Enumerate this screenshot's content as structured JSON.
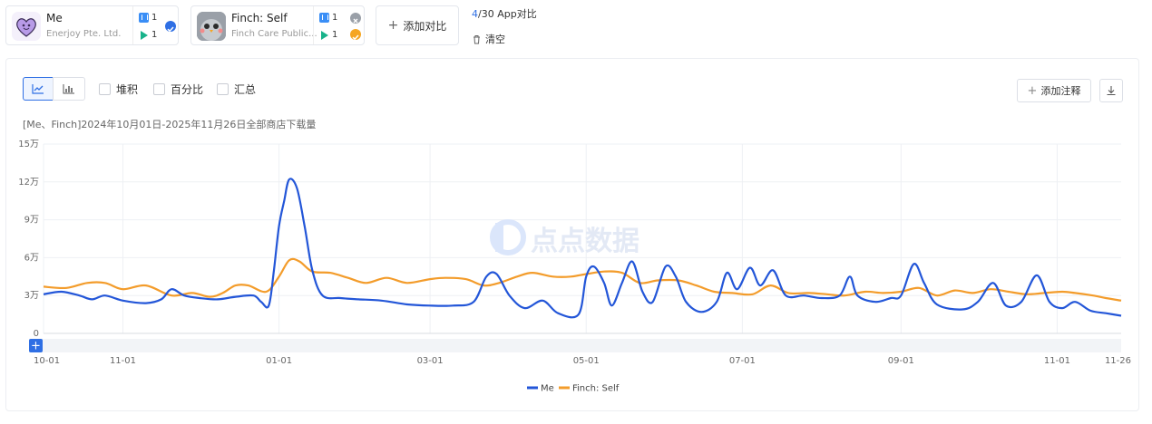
{
  "apps": [
    {
      "name": "Me",
      "publisher": "Enerjoy Pte. Ltd.",
      "ios_count": "1",
      "android_count": "1",
      "badge_color": "#2f6fe4"
    },
    {
      "name": "Finch: Self",
      "publisher": "Finch Care Public...",
      "ios_count": "1",
      "android_count": "1",
      "badge_color": "#f5a623"
    }
  ],
  "toolbar": {
    "add_compare_label": "添加对比",
    "count_current": "4",
    "count_rest": "/30 App对比",
    "clear_label": "清空"
  },
  "chart_controls": {
    "stacked_label": "堆积",
    "percent_label": "百分比",
    "summary_label": "汇总",
    "add_note_label": "添加注释"
  },
  "watermark": "点点数据",
  "chart_data": {
    "type": "line",
    "title": "[Me、Finch]2024年10月01日-2025年11月26日全部商店下载量",
    "ylim": [
      0,
      150000
    ],
    "y_ticks": [
      "0",
      "3万",
      "6万",
      "9万",
      "12万",
      "15万"
    ],
    "x_ticks": [
      "10-01",
      "11-01",
      "01-01",
      "03-01",
      "05-01",
      "07-01",
      "09-01",
      "11-01",
      "11-26"
    ],
    "x_start": "2024-10-01",
    "x_end": "2025-11-26",
    "grid": true,
    "legend_position": "bottom",
    "series": [
      {
        "name": "Me",
        "color": "#2356d8",
        "points": [
          [
            "2024-10-01",
            31000
          ],
          [
            "2024-10-08",
            33000
          ],
          [
            "2024-10-15",
            30000
          ],
          [
            "2024-10-20",
            27000
          ],
          [
            "2024-10-25",
            30000
          ],
          [
            "2024-11-01",
            26000
          ],
          [
            "2024-11-10",
            24000
          ],
          [
            "2024-11-16",
            27000
          ],
          [
            "2024-11-20",
            35000
          ],
          [
            "2024-11-25",
            30000
          ],
          [
            "2024-12-01",
            28000
          ],
          [
            "2024-12-08",
            27000
          ],
          [
            "2024-12-15",
            29000
          ],
          [
            "2024-12-22",
            30000
          ],
          [
            "2024-12-25",
            25000
          ],
          [
            "2024-12-28",
            22000
          ],
          [
            "2024-12-30",
            50000
          ],
          [
            "2025-01-01",
            85000
          ],
          [
            "2025-01-03",
            105000
          ],
          [
            "2025-01-05",
            122000
          ],
          [
            "2025-01-08",
            115000
          ],
          [
            "2025-01-11",
            85000
          ],
          [
            "2025-01-14",
            50000
          ],
          [
            "2025-01-18",
            30000
          ],
          [
            "2025-01-25",
            28000
          ],
          [
            "2025-02-01",
            27000
          ],
          [
            "2025-02-10",
            26000
          ],
          [
            "2025-02-20",
            23000
          ],
          [
            "2025-03-01",
            22000
          ],
          [
            "2025-03-10",
            22000
          ],
          [
            "2025-03-18",
            25000
          ],
          [
            "2025-03-23",
            45000
          ],
          [
            "2025-03-27",
            47000
          ],
          [
            "2025-04-01",
            30000
          ],
          [
            "2025-04-07",
            20000
          ],
          [
            "2025-04-14",
            26000
          ],
          [
            "2025-04-20",
            16000
          ],
          [
            "2025-04-28",
            15000
          ],
          [
            "2025-05-01",
            45000
          ],
          [
            "2025-05-04",
            53000
          ],
          [
            "2025-05-08",
            40000
          ],
          [
            "2025-05-11",
            22000
          ],
          [
            "2025-05-15",
            40000
          ],
          [
            "2025-05-19",
            57000
          ],
          [
            "2025-05-23",
            33000
          ],
          [
            "2025-05-27",
            25000
          ],
          [
            "2025-06-01",
            53000
          ],
          [
            "2025-06-05",
            45000
          ],
          [
            "2025-06-09",
            25000
          ],
          [
            "2025-06-15",
            17000
          ],
          [
            "2025-06-21",
            25000
          ],
          [
            "2025-06-25",
            48000
          ],
          [
            "2025-06-29",
            35000
          ],
          [
            "2025-07-04",
            52000
          ],
          [
            "2025-07-08",
            38000
          ],
          [
            "2025-07-13",
            50000
          ],
          [
            "2025-07-18",
            30000
          ],
          [
            "2025-07-25",
            30000
          ],
          [
            "2025-08-01",
            28000
          ],
          [
            "2025-08-08",
            30000
          ],
          [
            "2025-08-12",
            45000
          ],
          [
            "2025-08-15",
            30000
          ],
          [
            "2025-08-22",
            25000
          ],
          [
            "2025-08-28",
            28000
          ],
          [
            "2025-09-01",
            30000
          ],
          [
            "2025-09-06",
            55000
          ],
          [
            "2025-09-10",
            40000
          ],
          [
            "2025-09-15",
            23000
          ],
          [
            "2025-09-25",
            19000
          ],
          [
            "2025-10-01",
            25000
          ],
          [
            "2025-10-07",
            40000
          ],
          [
            "2025-10-12",
            22000
          ],
          [
            "2025-10-18",
            25000
          ],
          [
            "2025-10-24",
            46000
          ],
          [
            "2025-10-29",
            25000
          ],
          [
            "2025-11-03",
            20000
          ],
          [
            "2025-11-08",
            25000
          ],
          [
            "2025-11-14",
            18000
          ],
          [
            "2025-11-20",
            16000
          ],
          [
            "2025-11-26",
            14000
          ]
        ]
      },
      {
        "name": "Finch: Self",
        "color": "#f39c2b",
        "points": [
          [
            "2024-10-01",
            37000
          ],
          [
            "2024-10-10",
            36000
          ],
          [
            "2024-10-18",
            40000
          ],
          [
            "2024-10-25",
            40000
          ],
          [
            "2024-11-01",
            35000
          ],
          [
            "2024-11-10",
            38000
          ],
          [
            "2024-11-20",
            30000
          ],
          [
            "2024-11-28",
            32000
          ],
          [
            "2024-12-05",
            29000
          ],
          [
            "2024-12-10",
            32000
          ],
          [
            "2024-12-15",
            38000
          ],
          [
            "2024-12-20",
            38000
          ],
          [
            "2024-12-27",
            33000
          ],
          [
            "2025-01-01",
            45000
          ],
          [
            "2025-01-05",
            58000
          ],
          [
            "2025-01-09",
            57000
          ],
          [
            "2025-01-14",
            49000
          ],
          [
            "2025-01-21",
            48000
          ],
          [
            "2025-01-28",
            44000
          ],
          [
            "2025-02-04",
            40000
          ],
          [
            "2025-02-12",
            44000
          ],
          [
            "2025-02-20",
            40000
          ],
          [
            "2025-03-01",
            43000
          ],
          [
            "2025-03-07",
            44000
          ],
          [
            "2025-03-15",
            43000
          ],
          [
            "2025-03-22",
            38000
          ],
          [
            "2025-03-28",
            40000
          ],
          [
            "2025-04-04",
            45000
          ],
          [
            "2025-04-10",
            48000
          ],
          [
            "2025-04-18",
            45000
          ],
          [
            "2025-04-25",
            45000
          ],
          [
            "2025-05-01",
            47000
          ],
          [
            "2025-05-08",
            49000
          ],
          [
            "2025-05-15",
            48000
          ],
          [
            "2025-05-22",
            40000
          ],
          [
            "2025-05-29",
            42000
          ],
          [
            "2025-06-06",
            42000
          ],
          [
            "2025-06-13",
            38000
          ],
          [
            "2025-06-20",
            33000
          ],
          [
            "2025-06-27",
            32000
          ],
          [
            "2025-07-05",
            31000
          ],
          [
            "2025-07-12",
            38000
          ],
          [
            "2025-07-19",
            32000
          ],
          [
            "2025-07-27",
            32000
          ],
          [
            "2025-08-03",
            31000
          ],
          [
            "2025-08-10",
            30000
          ],
          [
            "2025-08-18",
            33000
          ],
          [
            "2025-08-25",
            32000
          ],
          [
            "2025-09-01",
            33000
          ],
          [
            "2025-09-08",
            36000
          ],
          [
            "2025-09-15",
            30000
          ],
          [
            "2025-09-22",
            34000
          ],
          [
            "2025-09-29",
            32000
          ],
          [
            "2025-10-06",
            35000
          ],
          [
            "2025-10-13",
            33000
          ],
          [
            "2025-10-20",
            31000
          ],
          [
            "2025-10-27",
            32000
          ],
          [
            "2025-11-03",
            33000
          ],
          [
            "2025-11-08",
            32000
          ],
          [
            "2025-11-15",
            30000
          ],
          [
            "2025-11-20",
            28000
          ],
          [
            "2025-11-26",
            26000
          ]
        ]
      }
    ]
  }
}
